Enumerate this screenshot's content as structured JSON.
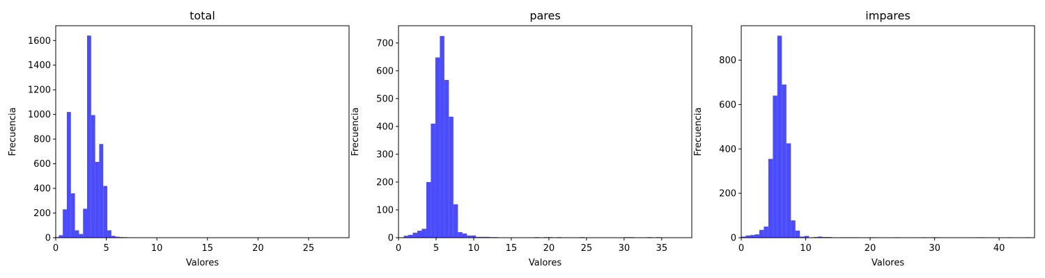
{
  "chart_data": [
    {
      "type": "bar",
      "title": "total",
      "xlabel": "Valores",
      "ylabel": "Frecuencia",
      "xlim": [
        0,
        29
      ],
      "ylim": [
        0,
        1720
      ],
      "xticks": [
        0,
        5,
        10,
        15,
        20,
        25
      ],
      "yticks": [
        0,
        200,
        400,
        600,
        800,
        1000,
        1200,
        1400,
        1600
      ],
      "bin_width": 0.4,
      "bins": [
        {
          "x": 0.1,
          "y": 5
        },
        {
          "x": 0.5,
          "y": 20
        },
        {
          "x": 0.9,
          "y": 230
        },
        {
          "x": 1.3,
          "y": 1020
        },
        {
          "x": 1.7,
          "y": 360
        },
        {
          "x": 2.1,
          "y": 60
        },
        {
          "x": 2.5,
          "y": 30
        },
        {
          "x": 2.9,
          "y": 235
        },
        {
          "x": 3.3,
          "y": 1640
        },
        {
          "x": 3.7,
          "y": 995
        },
        {
          "x": 4.1,
          "y": 615
        },
        {
          "x": 4.5,
          "y": 760
        },
        {
          "x": 4.9,
          "y": 420
        },
        {
          "x": 5.3,
          "y": 60
        },
        {
          "x": 5.7,
          "y": 15
        },
        {
          "x": 6.1,
          "y": 8
        },
        {
          "x": 6.5,
          "y": 5
        },
        {
          "x": 6.9,
          "y": 4
        },
        {
          "x": 7.3,
          "y": 3
        },
        {
          "x": 7.7,
          "y": 3
        },
        {
          "x": 8.1,
          "y": 2
        },
        {
          "x": 9.3,
          "y": 2
        },
        {
          "x": 11.3,
          "y": 2
        },
        {
          "x": 12.5,
          "y": 2
        },
        {
          "x": 15.3,
          "y": 2
        },
        {
          "x": 25.3,
          "y": 1
        }
      ]
    },
    {
      "type": "bar",
      "title": "pares",
      "xlabel": "Valores",
      "ylabel": "Frecuencia",
      "xlim": [
        0,
        39
      ],
      "ylim": [
        0,
        762
      ],
      "xticks": [
        0,
        5,
        10,
        15,
        20,
        25,
        30,
        35
      ],
      "yticks": [
        0,
        100,
        200,
        300,
        400,
        500,
        600,
        700
      ],
      "bin_width": 0.6,
      "bins": [
        {
          "x": 1.0,
          "y": 7
        },
        {
          "x": 1.6,
          "y": 10
        },
        {
          "x": 2.2,
          "y": 18
        },
        {
          "x": 2.8,
          "y": 25
        },
        {
          "x": 3.4,
          "y": 32
        },
        {
          "x": 4.0,
          "y": 200
        },
        {
          "x": 4.6,
          "y": 410
        },
        {
          "x": 5.2,
          "y": 648
        },
        {
          "x": 5.8,
          "y": 725
        },
        {
          "x": 6.4,
          "y": 567
        },
        {
          "x": 7.0,
          "y": 435
        },
        {
          "x": 7.6,
          "y": 120
        },
        {
          "x": 8.2,
          "y": 20
        },
        {
          "x": 8.8,
          "y": 15
        },
        {
          "x": 9.4,
          "y": 8
        },
        {
          "x": 10.0,
          "y": 8
        },
        {
          "x": 10.6,
          "y": 3
        },
        {
          "x": 11.2,
          "y": 3
        },
        {
          "x": 11.8,
          "y": 3
        },
        {
          "x": 12.4,
          "y": 2
        },
        {
          "x": 13.0,
          "y": 2
        },
        {
          "x": 18.4,
          "y": 2
        },
        {
          "x": 19.6,
          "y": 2
        },
        {
          "x": 20.2,
          "y": 2
        },
        {
          "x": 21.4,
          "y": 2
        },
        {
          "x": 24.4,
          "y": 2
        },
        {
          "x": 30.4,
          "y": 2
        },
        {
          "x": 31.0,
          "y": 2
        },
        {
          "x": 33.4,
          "y": 2
        },
        {
          "x": 34.6,
          "y": 2
        },
        {
          "x": 38.2,
          "y": 1
        }
      ]
    },
    {
      "type": "bar",
      "title": "impares",
      "xlabel": "Valores",
      "ylabel": "Frecuencia",
      "xlim": [
        0,
        45.5
      ],
      "ylim": [
        0,
        955
      ],
      "xticks": [
        0,
        10,
        20,
        30,
        40
      ],
      "yticks": [
        0,
        200,
        400,
        600,
        800
      ],
      "bin_width": 0.7,
      "bins": [
        {
          "x": 0.35,
          "y": 5
        },
        {
          "x": 1.05,
          "y": 10
        },
        {
          "x": 1.75,
          "y": 12
        },
        {
          "x": 2.45,
          "y": 15
        },
        {
          "x": 3.15,
          "y": 35
        },
        {
          "x": 3.85,
          "y": 50
        },
        {
          "x": 4.55,
          "y": 355
        },
        {
          "x": 5.25,
          "y": 640
        },
        {
          "x": 5.95,
          "y": 910
        },
        {
          "x": 6.65,
          "y": 690
        },
        {
          "x": 7.35,
          "y": 425
        },
        {
          "x": 8.05,
          "y": 78
        },
        {
          "x": 8.75,
          "y": 32
        },
        {
          "x": 9.45,
          "y": 5
        },
        {
          "x": 10.15,
          "y": 8
        },
        {
          "x": 11.55,
          "y": 3
        },
        {
          "x": 12.25,
          "y": 5
        },
        {
          "x": 12.95,
          "y": 3
        },
        {
          "x": 13.65,
          "y": 3
        },
        {
          "x": 15.75,
          "y": 2
        },
        {
          "x": 16.45,
          "y": 2
        },
        {
          "x": 17.15,
          "y": 2
        },
        {
          "x": 17.85,
          "y": 2
        },
        {
          "x": 19.95,
          "y": 2
        },
        {
          "x": 20.65,
          "y": 2
        },
        {
          "x": 24.15,
          "y": 2
        },
        {
          "x": 28.35,
          "y": 2
        },
        {
          "x": 29.75,
          "y": 2
        },
        {
          "x": 30.45,
          "y": 2
        },
        {
          "x": 36.75,
          "y": 2
        },
        {
          "x": 37.45,
          "y": 2
        },
        {
          "x": 41.65,
          "y": 2
        },
        {
          "x": 44.45,
          "y": 2
        }
      ]
    }
  ],
  "colors": {
    "bar": "#4c4cff",
    "axes": "#000000",
    "background": "#ffffff"
  }
}
